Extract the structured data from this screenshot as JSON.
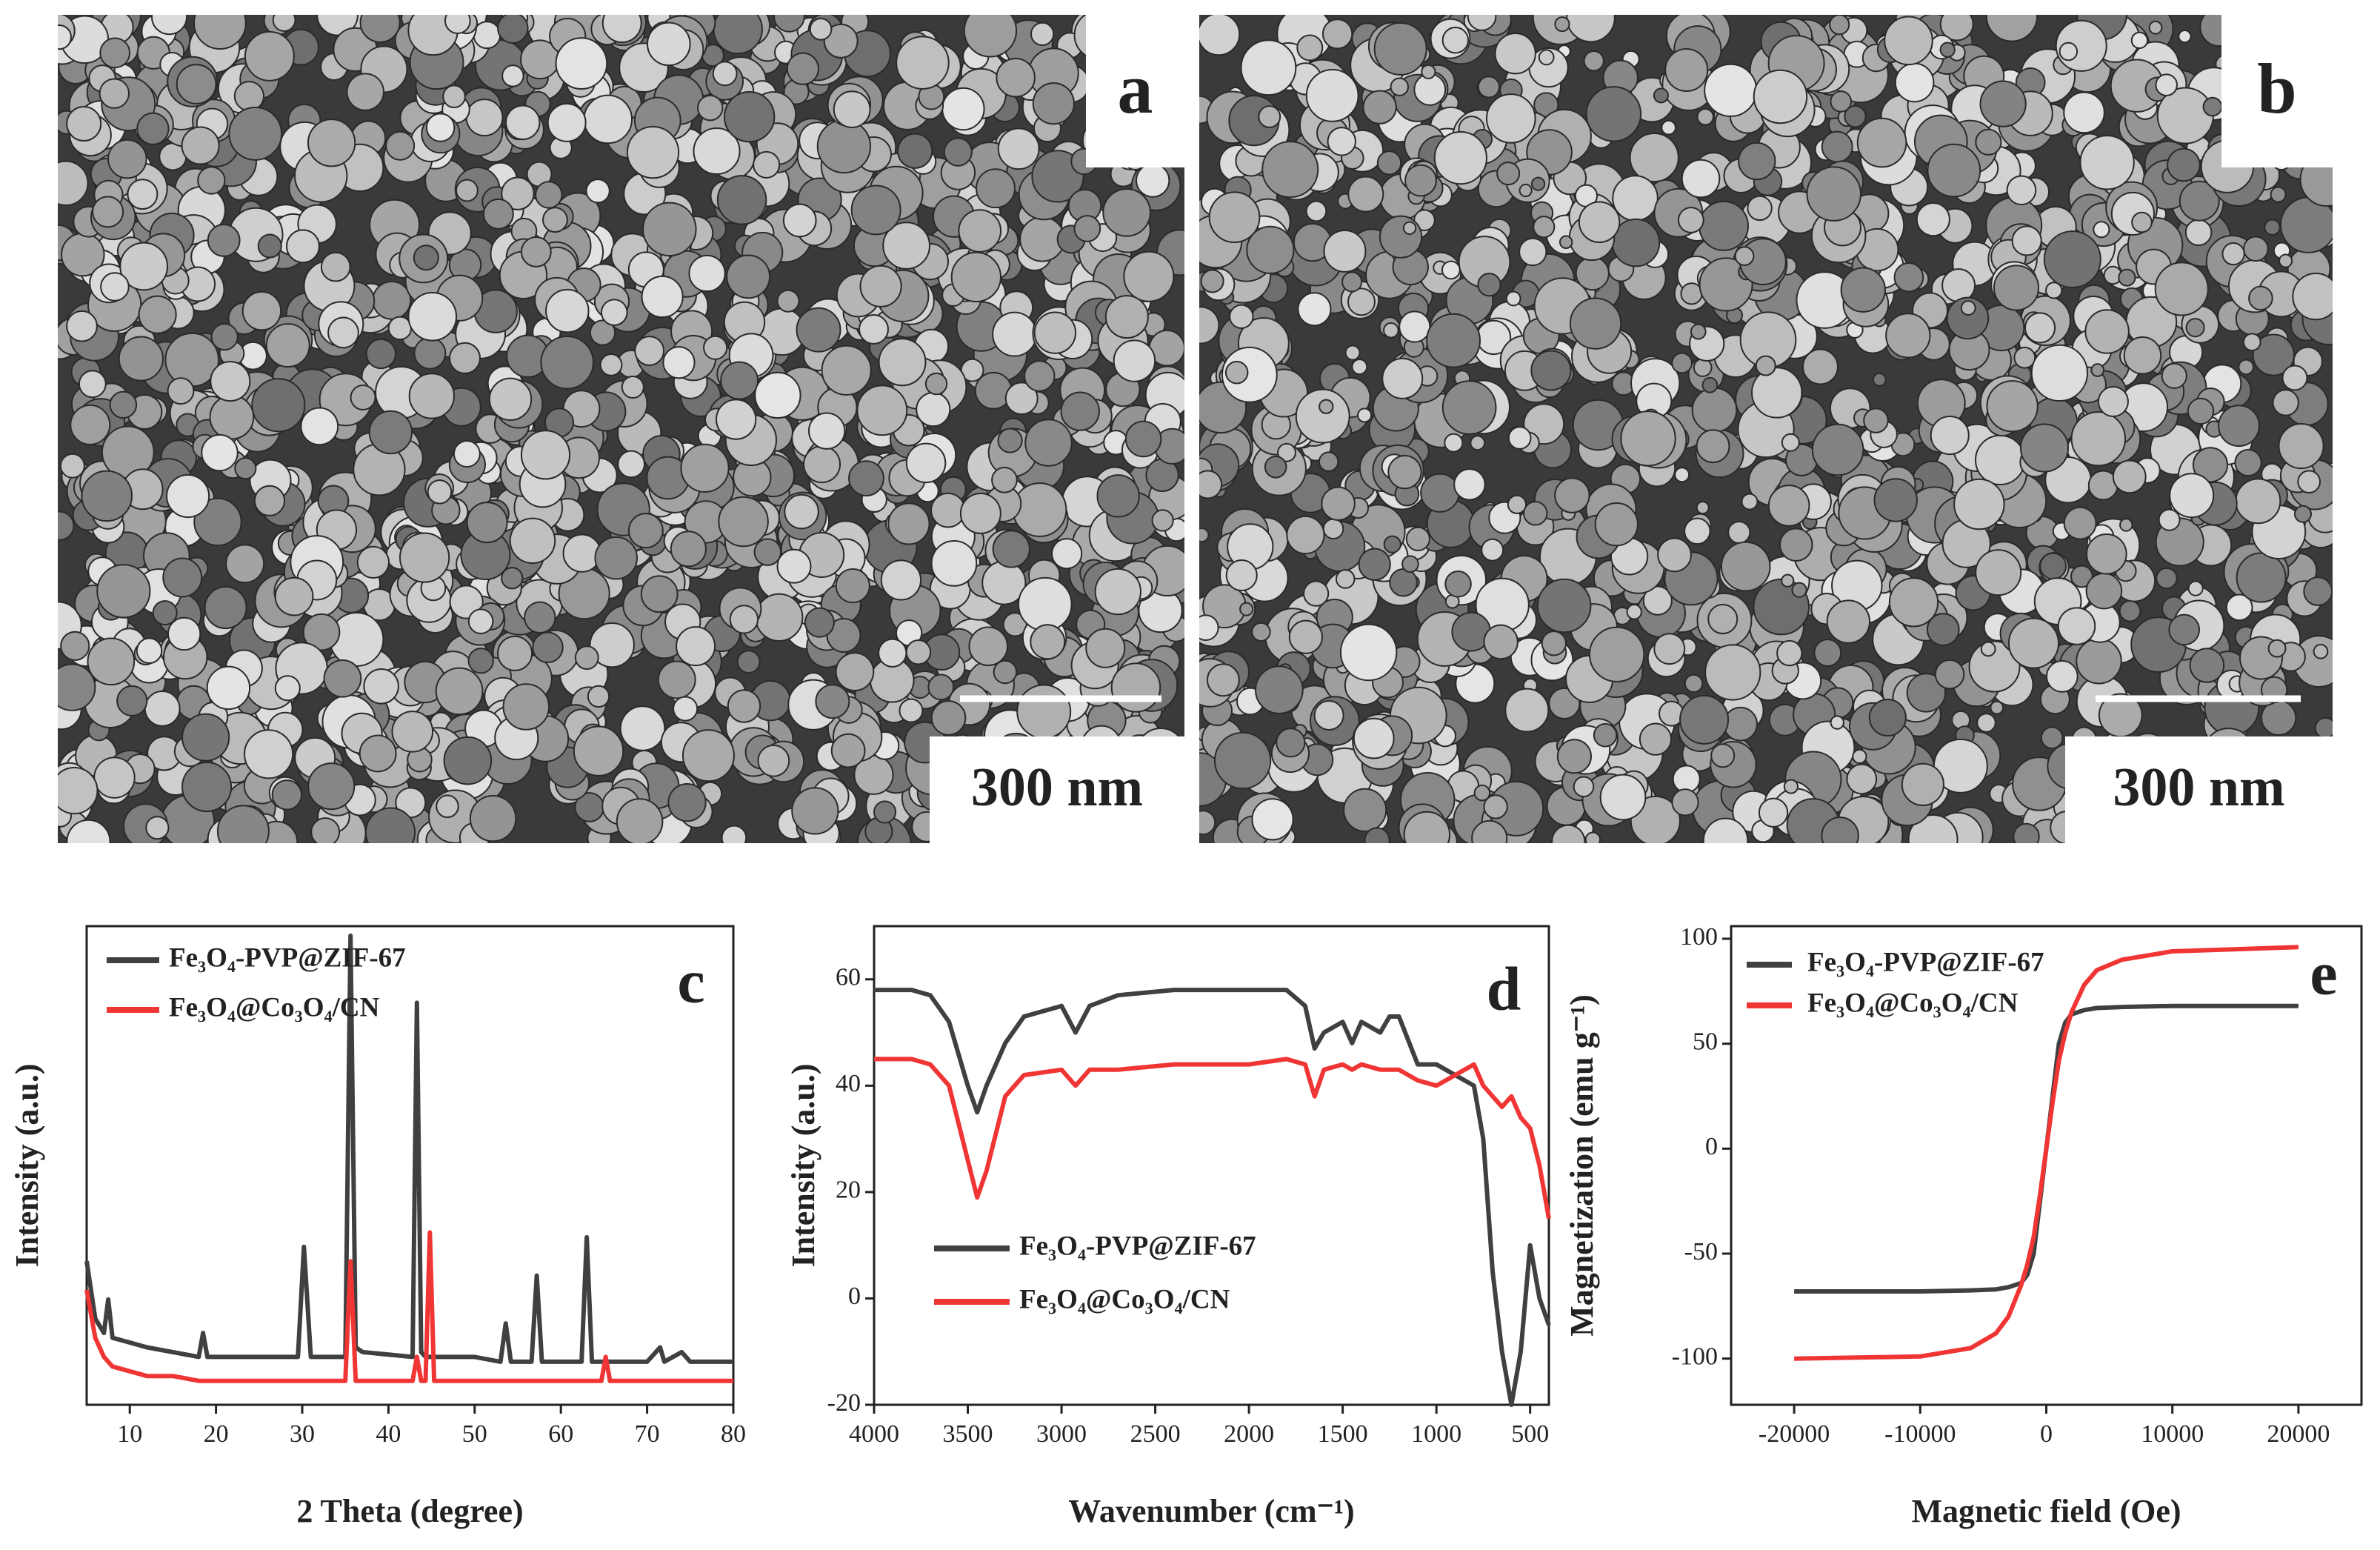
{
  "images": [
    {
      "label": "a",
      "scale_bar": "300 nm"
    },
    {
      "label": "b",
      "scale_bar": "300 nm"
    }
  ],
  "chart_data": [
    {
      "type": "line",
      "label": "c",
      "x_label": "2 Theta (degree)",
      "y_label": "Intensity (a.u.)",
      "xlim": [
        5,
        80
      ],
      "ylim": [
        0,
        100
      ],
      "xticks": [
        10,
        20,
        30,
        40,
        50,
        60,
        70,
        80
      ],
      "legend": "upper left",
      "x": [
        5,
        6,
        7,
        7.5,
        8,
        10,
        12,
        15,
        18,
        18.5,
        19,
        25,
        29.5,
        30.2,
        31,
        35,
        35.6,
        36.2,
        37,
        42.8,
        43.3,
        43.8,
        44.3,
        44.8,
        45.3,
        50,
        53,
        53.6,
        54.2,
        56.6,
        57.2,
        57.8,
        62.4,
        63,
        63.6,
        64.7,
        65.2,
        65.7,
        70,
        71.5,
        72,
        74,
        75,
        80
      ],
      "series": [
        {
          "name": "Fe₃O₄-PVP@ZIF-67",
          "color": "#404040",
          "values": [
            30,
            18,
            15,
            22,
            14,
            13,
            12,
            11,
            10,
            15,
            10,
            10,
            10,
            33,
            10,
            10,
            98,
            12,
            11,
            10,
            84,
            11,
            10,
            10,
            10,
            10,
            9,
            17,
            9,
            9,
            27,
            9,
            9,
            35,
            9,
            9,
            9,
            9,
            9,
            12,
            9,
            11,
            9,
            9
          ]
        },
        {
          "name": "Fe₃O₄@Co₃O₄/CN",
          "color": "#f03535",
          "values": [
            24,
            14,
            10,
            9,
            8,
            7,
            6,
            6,
            5,
            5,
            5,
            5,
            5,
            5,
            5,
            5,
            30,
            5,
            5,
            5,
            10,
            5,
            5,
            36,
            5,
            5,
            5,
            5,
            5,
            5,
            5,
            5,
            5,
            5,
            5,
            5,
            10,
            5,
            5,
            5,
            5,
            5,
            5,
            5
          ]
        }
      ]
    },
    {
      "type": "line",
      "label": "d",
      "x_label": "Wavenumber (cm⁻¹)",
      "y_label": "Intensity (a.u.)",
      "xlim": [
        4000,
        400
      ],
      "ylim": [
        -20,
        70
      ],
      "xticks": [
        4000,
        3500,
        3000,
        2500,
        2000,
        1500,
        1000,
        500
      ],
      "yticks": [
        -20,
        0,
        20,
        40,
        60
      ],
      "legend": "lower left",
      "x": [
        4000,
        3800,
        3700,
        3600,
        3500,
        3450,
        3400,
        3300,
        3200,
        3000,
        2925,
        2850,
        2700,
        2400,
        2000,
        1800,
        1700,
        1650,
        1600,
        1500,
        1450,
        1400,
        1300,
        1250,
        1200,
        1100,
        1000,
        900,
        800,
        750,
        700,
        650,
        600,
        550,
        500,
        450,
        400
      ],
      "series": [
        {
          "name": "Fe₃O₄-PVP@ZIF-67",
          "color": "#404040",
          "values": [
            58,
            58,
            57,
            52,
            40,
            35,
            40,
            48,
            53,
            55,
            50,
            55,
            57,
            58,
            58,
            58,
            55,
            47,
            50,
            52,
            48,
            52,
            50,
            53,
            53,
            44,
            44,
            42,
            40,
            30,
            5,
            -10,
            -20,
            -10,
            10,
            0,
            -5
          ]
        },
        {
          "name": "Fe₃O₄@Co₃O₄/CN",
          "color": "#f03535",
          "values": [
            45,
            45,
            44,
            40,
            26,
            19,
            24,
            38,
            42,
            43,
            40,
            43,
            43,
            44,
            44,
            45,
            44,
            38,
            43,
            44,
            43,
            44,
            43,
            43,
            43,
            41,
            40,
            42,
            44,
            40,
            38,
            36,
            38,
            34,
            32,
            25,
            15
          ]
        }
      ]
    },
    {
      "type": "line",
      "label": "e",
      "x_label": "Magnetic field (Oe)",
      "y_label": "Magnetization (emu g⁻¹)",
      "xlim": [
        -25000,
        25000
      ],
      "ylim": [
        -122,
        106
      ],
      "xticks": [
        -20000,
        -10000,
        0,
        10000,
        20000
      ],
      "yticks": [
        -100,
        -50,
        0,
        50,
        100
      ],
      "legend": "upper left",
      "x": [
        -20000,
        -10000,
        -6000,
        -4000,
        -3000,
        -2000,
        -1500,
        -1000,
        -500,
        0,
        500,
        1000,
        1500,
        2000,
        3000,
        4000,
        6000,
        10000,
        20000
      ],
      "series": [
        {
          "name": "Fe₃O₄-PVP@ZIF-67",
          "color": "#404040",
          "values": [
            -68,
            -68,
            -67.5,
            -67,
            -66,
            -64,
            -60,
            -50,
            -25,
            0,
            25,
            50,
            60,
            64,
            66,
            67,
            67.5,
            68,
            68
          ]
        },
        {
          "name": "Fe₃O₄@Co₃O₄/CN",
          "color": "#f03535",
          "values": [
            -100,
            -99,
            -95,
            -88,
            -80,
            -65,
            -55,
            -42,
            -22,
            0,
            22,
            42,
            55,
            65,
            78,
            85,
            90,
            94,
            96
          ]
        }
      ]
    }
  ]
}
